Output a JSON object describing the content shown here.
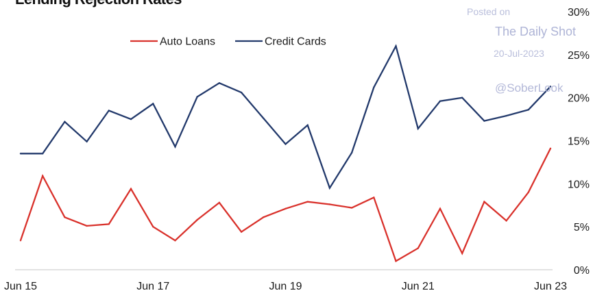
{
  "chart_data": {
    "type": "line",
    "title": "Lending Rejection Rates",
    "x": [
      "Jun 15",
      "Oct 15",
      "Feb 16",
      "Jun 16",
      "Oct 16",
      "Feb 17",
      "Jun 17",
      "Oct 17",
      "Feb 18",
      "Jun 18",
      "Oct 18",
      "Feb 19",
      "Jun 19",
      "Oct 19",
      "Feb 20",
      "Jun 20",
      "Oct 20",
      "Feb 21",
      "Jun 21",
      "Oct 21",
      "Feb 22",
      "Jun 22",
      "Oct 22",
      "Feb 23",
      "Jun 23"
    ],
    "x_tick_labels": [
      "Jun 15",
      "Jun 17",
      "Jun 19",
      "Jun 21",
      "Jun 23"
    ],
    "y_tick_labels": [
      "0%",
      "5%",
      "10%",
      "15%",
      "20%",
      "25%",
      "30%"
    ],
    "ylim": [
      0,
      30
    ],
    "legend": {
      "placement": "top-center",
      "entries": [
        "Auto Loans",
        "Credit Cards"
      ]
    },
    "grid": false,
    "series": [
      {
        "name": "Auto Loans",
        "color": "#d9312b",
        "values": [
          3.4,
          10.9,
          6.1,
          5.1,
          5.3,
          9.4,
          5.0,
          3.4,
          5.8,
          7.8,
          4.4,
          6.1,
          7.1,
          7.9,
          7.6,
          7.2,
          8.4,
          1.0,
          2.5,
          7.1,
          1.9,
          7.9,
          5.7,
          9.0,
          14.1
        ]
      },
      {
        "name": "Credit Cards",
        "color": "#22396b",
        "values": [
          13.5,
          13.5,
          17.2,
          14.9,
          18.5,
          17.5,
          19.3,
          14.3,
          20.1,
          21.7,
          20.6,
          17.6,
          14.6,
          16.8,
          9.5,
          13.6,
          21.2,
          26.0,
          16.4,
          19.6,
          20.0,
          17.3,
          17.9,
          18.6,
          21.3
        ]
      }
    ]
  },
  "watermark": {
    "posted": "Posted on",
    "site": "The Daily Shot",
    "date": "20-Jul-2023",
    "handle": "@SoberLook"
  }
}
